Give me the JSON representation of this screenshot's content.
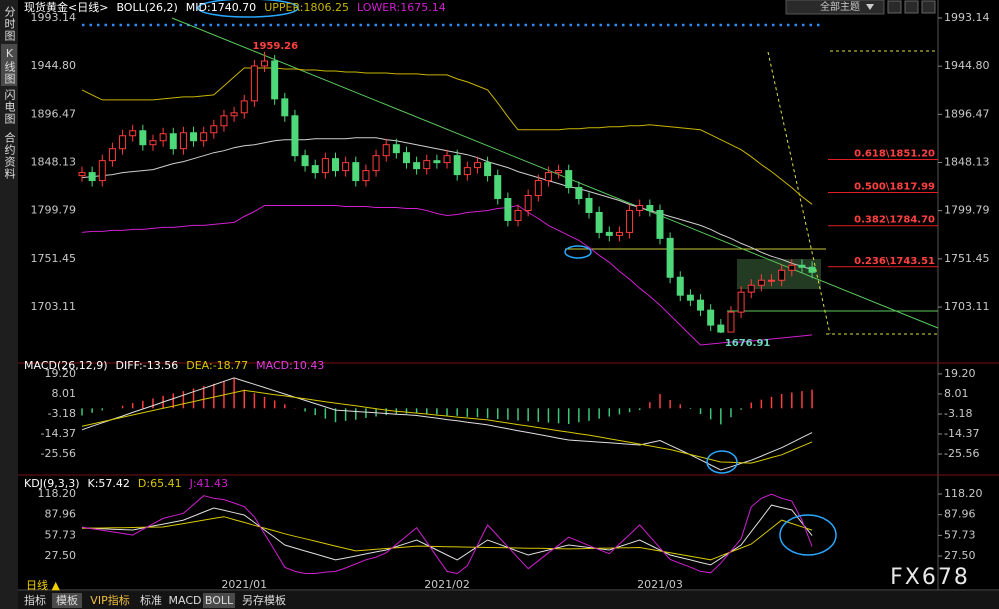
{
  "chart_data": [
    {
      "type": "candlestick",
      "title": "现货黄金<日线>",
      "indicator": "BOLL(26,2)",
      "categories": [
        null,
        null,
        null,
        null,
        null,
        null,
        null,
        null,
        null,
        null,
        null,
        null,
        null,
        null,
        null,
        null,
        "2021/01",
        null,
        null,
        null,
        null,
        null,
        null,
        null,
        null,
        null,
        null,
        null,
        null,
        null,
        null,
        null,
        null,
        null,
        null,
        null,
        "2021/02",
        null,
        null,
        null,
        null,
        null,
        null,
        null,
        null,
        null,
        null,
        null,
        null,
        null,
        null,
        null,
        null,
        null,
        null,
        null,
        null,
        "2021/03",
        null,
        null,
        null,
        null,
        null,
        null,
        null,
        null,
        null,
        null,
        null,
        null,
        null,
        null,
        null
      ],
      "open": [
        1835,
        1838,
        1830,
        1850,
        1862,
        1875,
        1880,
        1866,
        1870,
        1877,
        1862,
        1878,
        1870,
        1878,
        1885,
        1895,
        1898,
        1910,
        1945,
        1950,
        1912,
        1895,
        1855,
        1845,
        1838,
        1852,
        1840,
        1848,
        1830,
        1840,
        1855,
        1866,
        1858,
        1848,
        1842,
        1850,
        1848,
        1855,
        1836,
        1843,
        1848,
        1835,
        1812,
        1790,
        1800,
        1815,
        1830,
        1838,
        1840,
        1823,
        1812,
        1798,
        1778,
        1775,
        1778,
        1800,
        1805,
        1800,
        1772,
        1733,
        1715,
        1710,
        1700,
        1685,
        1678,
        1698,
        1718,
        1725,
        1730,
        1730,
        1740,
        1745,
        1743
      ],
      "high": [
        1844,
        1844,
        1856,
        1868,
        1881,
        1886,
        1886,
        1876,
        1883,
        1883,
        1884,
        1884,
        1884,
        1891,
        1901,
        1904,
        1916,
        1951,
        1959.26,
        1956,
        1918,
        1901,
        1861,
        1851,
        1858,
        1858,
        1854,
        1854,
        1846,
        1861,
        1872,
        1872,
        1864,
        1854,
        1856,
        1856,
        1861,
        1861,
        1849,
        1854,
        1854,
        1841,
        1818,
        1806,
        1821,
        1836,
        1844,
        1846,
        1846,
        1829,
        1818,
        1804,
        1784,
        1784,
        1806,
        1811,
        1811,
        1806,
        1778,
        1739,
        1721,
        1716,
        1706,
        1691,
        1704,
        1724,
        1731,
        1736,
        1736,
        1746,
        1751,
        1751,
        1749
      ],
      "low": [
        1829,
        1824,
        1824,
        1844,
        1856,
        1869,
        1860,
        1860,
        1864,
        1856,
        1856,
        1864,
        1864,
        1872,
        1879,
        1889,
        1892,
        1904,
        1939,
        1906,
        1889,
        1849,
        1839,
        1832,
        1832,
        1834,
        1834,
        1824,
        1824,
        1834,
        1849,
        1852,
        1842,
        1836,
        1836,
        1842,
        1842,
        1830,
        1830,
        1837,
        1829,
        1806,
        1784,
        1784,
        1794,
        1809,
        1824,
        1832,
        1817,
        1806,
        1792,
        1772,
        1769,
        1769,
        1772,
        1794,
        1794,
        1766,
        1727,
        1709,
        1704,
        1694,
        1679,
        1676.91,
        1680,
        1692,
        1712,
        1719,
        1724,
        1724,
        1734,
        1737,
        1732
      ],
      "close": [
        1838,
        1830,
        1850,
        1862,
        1875,
        1880,
        1866,
        1870,
        1877,
        1862,
        1878,
        1870,
        1878,
        1885,
        1895,
        1898,
        1910,
        1945,
        1950,
        1912,
        1895,
        1855,
        1845,
        1838,
        1852,
        1840,
        1848,
        1830,
        1840,
        1855,
        1866,
        1858,
        1848,
        1842,
        1850,
        1848,
        1855,
        1836,
        1843,
        1848,
        1835,
        1812,
        1790,
        1800,
        1815,
        1830,
        1838,
        1840,
        1823,
        1812,
        1798,
        1778,
        1775,
        1778,
        1800,
        1805,
        1800,
        1772,
        1733,
        1715,
        1710,
        1700,
        1685,
        1678,
        1698,
        1718,
        1725,
        1730,
        1730,
        1740,
        1745,
        1743,
        1738
      ],
      "up_color": "#ff3c3c",
      "down_color": "#4ed87a",
      "series": [
        {
          "name": "MID:1740.70",
          "color": "#d0d0d0",
          "values": [
            1833,
            1834,
            1835,
            1836,
            1838,
            1839,
            1840,
            1841,
            1844,
            1847,
            1849,
            1852,
            1855,
            1858,
            1860,
            1863,
            1865,
            1866,
            1868,
            1870,
            1871,
            1871,
            1871,
            1872,
            1872,
            1872,
            1872,
            1873,
            1873,
            1873,
            1871,
            1870,
            1868,
            1866,
            1864,
            1862,
            1860,
            1858,
            1856,
            1853,
            1849,
            1846,
            1843,
            1839,
            1836,
            1833,
            1830,
            1827,
            1824,
            1822,
            1819,
            1816,
            1813,
            1810,
            1806,
            1803,
            1800,
            1797,
            1794,
            1791,
            1788,
            1785,
            1781,
            1776,
            1772,
            1767,
            1763,
            1758,
            1754,
            1751,
            1747,
            1744,
            1740.7
          ]
        },
        {
          "name": "UPPER:1806.25",
          "color": "#c8b400",
          "values": [
            1921,
            1916,
            1911,
            1911,
            1911,
            1911,
            1911,
            1911,
            1912,
            1913,
            1914,
            1914,
            1915,
            1916,
            1925,
            1934,
            1943,
            1943,
            1943,
            1943,
            1942,
            1942,
            1941,
            1941,
            1940,
            1940,
            1939,
            1939,
            1938,
            1938,
            1938,
            1937,
            1937,
            1937,
            1936,
            1936,
            1936,
            1932,
            1929,
            1925,
            1921,
            1908,
            1894,
            1881,
            1881,
            1881,
            1881,
            1881,
            1882,
            1882,
            1883,
            1883,
            1884,
            1884,
            1885,
            1885,
            1886,
            1885,
            1884,
            1883,
            1882,
            1881,
            1876,
            1871,
            1866,
            1861,
            1854,
            1846,
            1839,
            1831,
            1823,
            1814,
            1806.25
          ]
        },
        {
          "name": "LOWER:1675.14",
          "color": "#d020d0",
          "values": [
            1778,
            1779,
            1779,
            1780,
            1780,
            1781,
            1781,
            1782,
            1783,
            1783,
            1784,
            1785,
            1785,
            1786,
            1787,
            1788,
            1794,
            1799,
            1805,
            1805,
            1805,
            1805,
            1805,
            1805,
            1805,
            1805,
            1804,
            1804,
            1804,
            1803,
            1803,
            1803,
            1802,
            1802,
            1800,
            1797,
            1795,
            1796,
            1798,
            1799,
            1800,
            1802,
            1803,
            1805,
            1798,
            1792,
            1785,
            1780,
            1775,
            1770,
            1763,
            1755,
            1748,
            1739,
            1731,
            1722,
            1714,
            1705,
            1695,
            1685,
            1675,
            1665,
            1666,
            1667,
            1668,
            1668,
            1669,
            1670,
            1671,
            1672,
            1673,
            1674,
            1675.14
          ]
        }
      ],
      "ylim": [
        1660,
        1993.14
      ],
      "yticks": [
        1993.14,
        {
          "value": 1944.8,
          "label": "1944.80"
        },
        1896.47,
        1848.13,
        1799.79,
        1751.45,
        1703.11
      ],
      "fib_levels": [
        {
          "value": 1851.2,
          "label": "0.618\\1851.20"
        },
        {
          "value": 1817.99,
          "label": "0.500\\1817.99"
        },
        {
          "value": 1784.7,
          "label": "0.382\\1784.70"
        },
        {
          "value": 1743.51,
          "label": "0.236\\1743.51"
        }
      ]
    },
    {
      "type": "macd",
      "title": "MACD(26,12,9)",
      "series": [
        {
          "name": "DIFF:-13.56",
          "color": "#e0e0e0",
          "values": [
            -12,
            -10,
            -8.1,
            -6.2,
            -4.3,
            -2.3,
            -0.4,
            1.5,
            3.5,
            5.4,
            7.3,
            9.3,
            11.2,
            13.1,
            15.1,
            17,
            15.2,
            13.4,
            11.6,
            9.8,
            8,
            6.2,
            4.4,
            2.6,
            0.8,
            -1,
            -1.4,
            -1.8,
            -2.1,
            -2.5,
            -2.9,
            -3.3,
            -3.6,
            -4,
            -4.8,
            -5.5,
            -6.3,
            -7,
            -7.8,
            -8.5,
            -9.3,
            -10.4,
            -11.4,
            -12.5,
            -13.5,
            -14.6,
            -15.6,
            -16.7,
            -17.7,
            -18.1,
            -18.5,
            -18.9,
            -19.3,
            -19.7,
            -20.1,
            -20.5,
            -19.3,
            -18,
            -20.7,
            -23.3,
            -26,
            -28.8,
            -31.7,
            -34.5,
            -32.7,
            -30.8,
            -29,
            -26.7,
            -24.3,
            -22,
            -19.2,
            -16.4,
            -13.56
          ]
        },
        {
          "name": "DEA:-18.77",
          "color": "#d8c800",
          "values": [
            -10,
            -8.75,
            -7.5,
            -6.25,
            -5,
            -3.75,
            -2.5,
            -1.25,
            0,
            1.25,
            2.5,
            3.75,
            5,
            6.25,
            7.5,
            8.75,
            10,
            9.2,
            8.4,
            7.6,
            6.9,
            6.1,
            5.3,
            4.5,
            3.7,
            2.9,
            2.1,
            1.4,
            0.6,
            -0.2,
            -1,
            -1.6,
            -2.1,
            -2.7,
            -3.2,
            -3.8,
            -4.3,
            -4.9,
            -5.4,
            -6,
            -6.5,
            -7.4,
            -8.2,
            -9.1,
            -9.9,
            -10.8,
            -11.6,
            -12.5,
            -13.3,
            -14.2,
            -15,
            -16,
            -17,
            -18,
            -19,
            -20,
            -21,
            -22,
            -23,
            -24.4,
            -25.8,
            -27.2,
            -28.6,
            -30,
            -30.2,
            -30.4,
            -30.6,
            -29.1,
            -27.5,
            -26,
            -23.6,
            -21.2,
            -18.77
          ]
        }
      ],
      "histogram": {
        "name": "MACD:10.43",
        "color": "#e040e0",
        "up_color": "#ff3c3c",
        "down_color": "#3cc87a",
        "values": [
          -4,
          -2.5,
          -1.2,
          0.1,
          1.4,
          2.9,
          4.2,
          5.5,
          7,
          8.3,
          9.6,
          11.1,
          12.4,
          13.7,
          15.2,
          16.5,
          10.4,
          8.4,
          6.4,
          4.4,
          2.2,
          0.2,
          -1.8,
          -3.8,
          -5.8,
          -7.8,
          -7,
          -6.4,
          -5.4,
          -4.6,
          -3.8,
          -3.4,
          -3,
          -2.6,
          -3.2,
          -3.4,
          -4,
          -4.2,
          -4.8,
          -5,
          -5.6,
          -6,
          -6.4,
          -6.8,
          -7.2,
          -7.6,
          -8,
          -8.4,
          -8.8,
          -7.8,
          -7,
          -5.8,
          -4.6,
          -3.4,
          -2.2,
          -1,
          3.4,
          8,
          4.6,
          2.2,
          -0.4,
          -3.2,
          -6.2,
          -9,
          -5,
          -0.8,
          3.2,
          4.8,
          6.4,
          8,
          8.8,
          9.6,
          10.43
        ]
      },
      "ylim": [
        -35.6,
        21.4
      ],
      "yticks": [
        {
          "value": 19.2,
          "label": "19.20"
        },
        8.01,
        -3.18,
        -14.37,
        -25.56
      ]
    },
    {
      "type": "line",
      "title": "KDJ(9,3,3)",
      "series": [
        {
          "name": "K:57.42",
          "color": "#e0e0e0",
          "values": [
            68.6,
            68,
            67.4,
            66.8,
            66.2,
            65.6,
            68.5,
            71.4,
            74.2,
            77.1,
            80,
            85.9,
            91.9,
            97.8,
            94.4,
            90.9,
            87.5,
            76.6,
            65.6,
            54.7,
            43.7,
            39.3,
            34.9,
            30.6,
            26.2,
            21.8,
            24.7,
            27.6,
            30.6,
            33.5,
            36.4,
            41.3,
            46.1,
            51,
            43.7,
            36.4,
            29.1,
            21.8,
            31.5,
            41.3,
            51,
            45.5,
            40,
            34.5,
            29,
            32.7,
            36.4,
            40,
            43.7,
            41.9,
            40,
            38.2,
            36.4,
            41.3,
            46.1,
            51,
            43.7,
            36.4,
            29,
            25.4,
            21.8,
            18.1,
            14.5,
            24.2,
            34,
            43.7,
            63.1,
            82.6,
            102,
            98.4,
            94.8,
            76.1,
            57.42
          ]
        },
        {
          "name": "D:65.41",
          "color": "#d8c800",
          "values": [
            68,
            68.3,
            68.5,
            68.8,
            69,
            69.3,
            69.5,
            69.8,
            70,
            72.5,
            75,
            77.5,
            80,
            82.5,
            85,
            80.8,
            76.7,
            72.5,
            68.3,
            64.2,
            60,
            56.4,
            52.9,
            49.3,
            45.7,
            42.1,
            38.6,
            35,
            36.2,
            37.3,
            38.5,
            39.7,
            40.8,
            42,
            41.7,
            41.4,
            41.1,
            40.9,
            40.6,
            40.3,
            40,
            39.8,
            39.5,
            39.3,
            39,
            38.8,
            38.5,
            38.3,
            38,
            38.3,
            38.6,
            38.9,
            39.1,
            39.4,
            39.7,
            40,
            37.4,
            34.9,
            32.3,
            29.7,
            27.1,
            24.6,
            22,
            27.8,
            33.5,
            39.3,
            45,
            56.7,
            68.3,
            80,
            75.1,
            70.3,
            65.41
          ]
        },
        {
          "name": "J:41.43",
          "color": "#d020d0",
          "values": [
            69.8,
            67.4,
            65.2,
            62.8,
            60.6,
            58.2,
            66.5,
            74.6,
            82.6,
            86.3,
            90,
            102.7,
            115.7,
            112,
            110,
            105,
            100,
            84.8,
            60.2,
            35.7,
            11.1,
            5.1,
            2,
            2,
            4,
            5,
            10,
            16,
            22,
            25.9,
            32.2,
            44.5,
            56.7,
            69,
            47.7,
            26.4,
            5.1,
            2,
            13.3,
            43.3,
            73,
            56.9,
            41,
            24.9,
            9,
            20.5,
            32.2,
            43.4,
            55.1,
            49.1,
            42.8,
            36.8,
            31,
            45.1,
            58.9,
            73,
            56.3,
            39.4,
            22.4,
            16.8,
            11.2,
            5.1,
            3,
            17,
            35,
            52.5,
            99.3,
            112,
            118,
            112,
            108,
            80,
            41.43
          ]
        }
      ],
      "ylim": [
        -4.6,
        127
      ],
      "yticks": [
        {
          "value": 118.2,
          "label": "118.20"
        },
        87.96,
        57.73,
        {
          "value": 27.5,
          "label": "27.50"
        }
      ]
    }
  ],
  "ui": {
    "side_tabs": [
      "分时图",
      "K线图",
      "闪电图",
      "合约资料"
    ],
    "period": "日线 ▲",
    "bottom_tabs": [
      "指标",
      "模板",
      "VIP指标",
      "标准",
      "MACD",
      "BOLL",
      "另存模板"
    ],
    "theme": "全部主题",
    "watermark": "FX678"
  }
}
